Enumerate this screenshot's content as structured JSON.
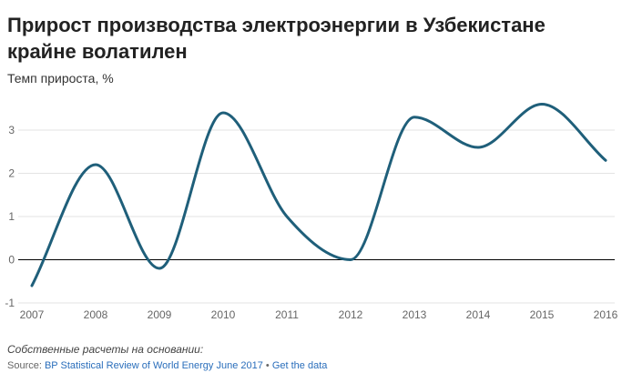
{
  "header": {
    "title": "Прирост производства электроэнергии в Узбекистане крайне волатилен",
    "subtitle": "Темп прироста, %"
  },
  "footer": {
    "note": "Собственные расчеты на основании:",
    "source_prefix": "Source: ",
    "source_link": "BP Statistical Review of World Energy June 2017",
    "separator": " • ",
    "data_link": "Get the data"
  },
  "colors": {
    "line": "#1f5f7a",
    "grid": "#e3e3e3",
    "zero": "#000000"
  },
  "chart_data": {
    "type": "line",
    "title": "Прирост производства электроэнергии в Узбекистане крайне волатилен",
    "ylabel": "Темп прироста, %",
    "xlabel": "",
    "x": [
      "2007",
      "2008",
      "2009",
      "2010",
      "2011",
      "2012",
      "2013",
      "2014",
      "2015",
      "2016"
    ],
    "series": [
      {
        "values": [
          -0.6,
          2.2,
          -0.2,
          3.4,
          1.0,
          0.0,
          3.3,
          2.6,
          3.6,
          2.3
        ]
      }
    ],
    "yticks": [
      -1,
      0,
      1,
      2,
      3
    ],
    "ylim": [
      -1,
      3.7
    ],
    "grid": true
  }
}
